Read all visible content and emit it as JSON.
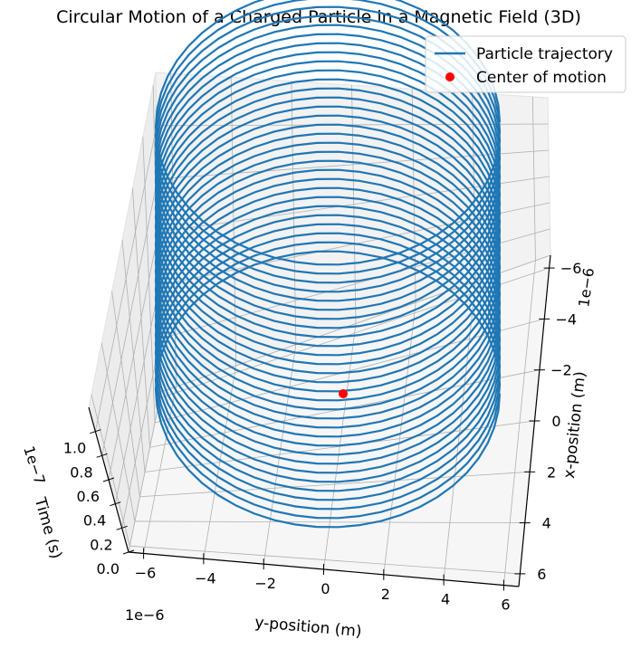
{
  "chart_data": {
    "type": "line",
    "projection": "3d",
    "title": "Circular Motion of a Charged Particle in a Magnetic Field (3D)",
    "xlabel": "x-position (m)",
    "ylabel": "y-position (m)",
    "zlabel": "Time (s)",
    "x_offset_text": "1e−6",
    "y_offset_text": "1e−6",
    "z_offset_text": "1e−7",
    "xlim": [
      -6.5e-06,
      6.5e-06
    ],
    "ylim": [
      -6.5e-06,
      6.5e-06
    ],
    "zlim": [
      0,
      1.2e-07
    ],
    "x_ticks": [
      -6,
      -4,
      -2,
      0,
      2,
      4,
      6
    ],
    "x_tick_labels": [
      "−6",
      "−4",
      "−2",
      "0",
      "2",
      "4",
      "6"
    ],
    "y_ticks": [
      -6,
      -4,
      -2,
      0,
      2,
      4,
      6
    ],
    "y_tick_labels": [
      "−6",
      "−4",
      "−2",
      "0",
      "2",
      "4",
      "6"
    ],
    "z_ticks": [
      0.0,
      0.2,
      0.4,
      0.6,
      0.8,
      1.0
    ],
    "z_tick_labels": [
      "0.0",
      "0.2",
      "0.4",
      "0.6",
      "0.8",
      "1.0"
    ],
    "grid": true,
    "legend_position": "top-right",
    "series": [
      {
        "name": "Particle trajectory",
        "kind": "line",
        "color": "#1f77b4",
        "shape": "helix",
        "radius": 5.7e-06,
        "center": [
          0,
          0
        ],
        "t_range": [
          0,
          1.1e-07
        ],
        "revolutions": 30
      },
      {
        "name": "Center of motion",
        "kind": "scatter",
        "color": "#ff0000",
        "points": [
          [
            0,
            0,
            0
          ]
        ]
      }
    ]
  }
}
